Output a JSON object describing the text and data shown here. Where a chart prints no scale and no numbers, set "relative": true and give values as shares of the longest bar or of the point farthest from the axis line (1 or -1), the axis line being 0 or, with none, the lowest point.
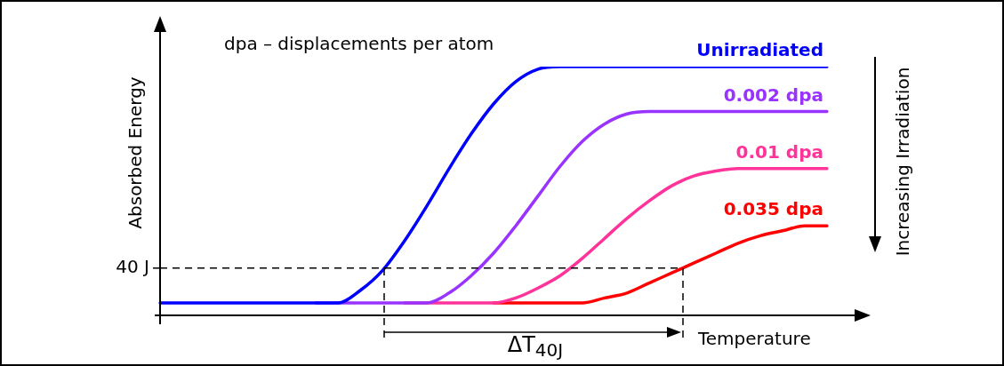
{
  "chart_data": {
    "type": "line",
    "relative": true,
    "xlabel": "Temperature",
    "ylabel": "Absorbed Energy",
    "annotations": [
      "dpa – displacements per atom",
      "ΔT$_{40J}$",
      "Increasing Irradiation"
    ],
    "categories": [
      null,
      null,
      null,
      null,
      null,
      null,
      null,
      null,
      null,
      null,
      null,
      null,
      null,
      null,
      null,
      null,
      null,
      null,
      null,
      null,
      null,
      null,
      null,
      null,
      null,
      null,
      null,
      null,
      null,
      null,
      null
    ],
    "series": [
      {
        "name": "Unirradiated",
        "color": "#0000ff",
        "values": [
          0.05,
          0.05,
          0.05,
          0.05,
          0.05,
          0.05,
          0.05,
          0.05,
          0.05,
          0.1,
          0.18,
          0.3,
          0.44,
          0.59,
          0.73,
          0.85,
          0.94,
          0.99,
          1,
          1,
          1,
          1,
          1,
          1,
          1,
          1,
          1,
          1,
          1,
          1,
          1
        ]
      },
      {
        "name": "0.002 dpa",
        "color": "#9933ff",
        "values": [
          null,
          null,
          null,
          null,
          null,
          null,
          null,
          0.05,
          0.05,
          0.05,
          0.05,
          0.05,
          0.05,
          0.09,
          0.16,
          0.25,
          0.36,
          0.48,
          0.6,
          0.7,
          0.77,
          0.81,
          0.82,
          0.82,
          0.82,
          0.82,
          0.82,
          0.82,
          0.82,
          0.82,
          0.82
        ]
      },
      {
        "name": "0.01 dpa",
        "color": "#ff3399",
        "values": [
          null,
          null,
          null,
          null,
          null,
          null,
          null,
          null,
          null,
          null,
          null,
          0.05,
          0.05,
          0.05,
          0.05,
          0.05,
          0.07,
          0.11,
          0.16,
          0.23,
          0.31,
          0.39,
          0.46,
          0.52,
          0.56,
          0.58,
          0.59,
          0.59,
          0.59,
          0.59,
          0.59
        ]
      },
      {
        "name": "0.035 dpa",
        "color": "#ff0000",
        "values": [
          null,
          null,
          null,
          null,
          null,
          null,
          null,
          null,
          null,
          null,
          null,
          null,
          null,
          null,
          null,
          0.05,
          0.05,
          0.05,
          0.05,
          0.05,
          0.07,
          0.09,
          0.13,
          0.17,
          0.21,
          0.25,
          0.29,
          0.32,
          0.34,
          0.36,
          0.36
        ]
      }
    ],
    "ref_lines": [
      {
        "axis": "y",
        "value": 0.19,
        "label": "40 J",
        "line_style": "dashed"
      }
    ],
    "legend": false,
    "marker": "none",
    "line_style": "solid"
  }
}
